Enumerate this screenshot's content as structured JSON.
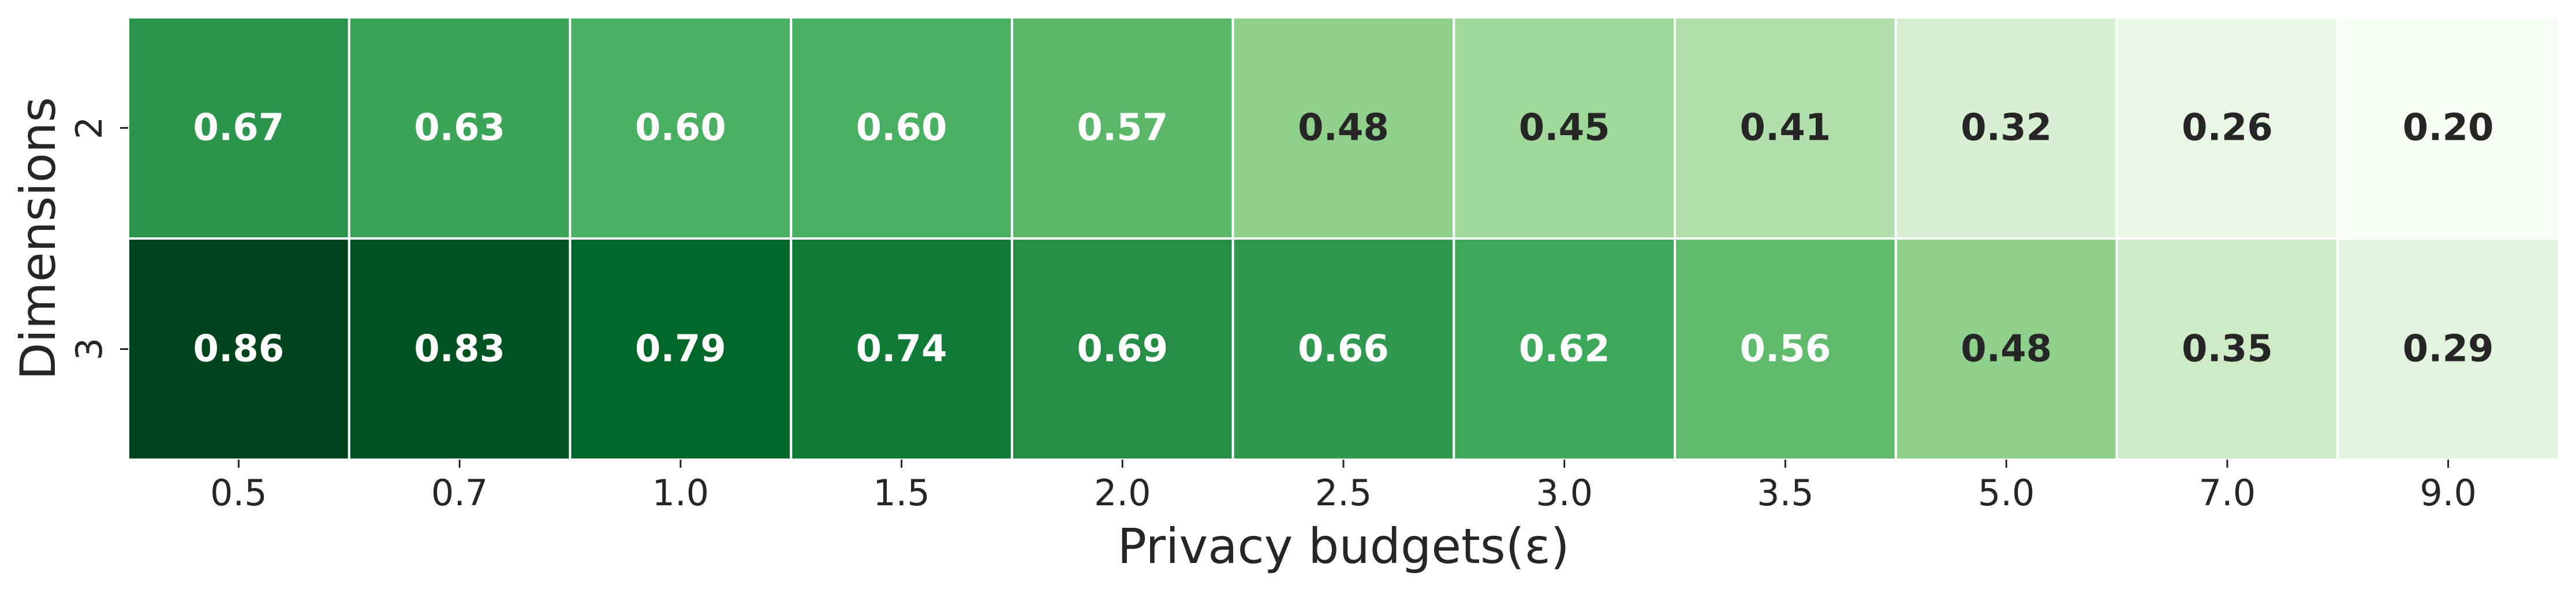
{
  "chart_data": {
    "type": "heatmap",
    "colormap": "Greens",
    "vmin": 0.2,
    "vmax": 0.86,
    "xlabel": "Privacy budgets(ε)",
    "ylabel": "Dimensions",
    "x_categories": [
      "0.5",
      "0.7",
      "1.0",
      "1.5",
      "2.0",
      "2.5",
      "3.0",
      "3.5",
      "5.0",
      "7.0",
      "9.0"
    ],
    "y_categories": [
      "2",
      "3"
    ],
    "values": [
      [
        0.67,
        0.63,
        0.6,
        0.6,
        0.57,
        0.48,
        0.45,
        0.41,
        0.32,
        0.26,
        0.2
      ],
      [
        0.86,
        0.83,
        0.79,
        0.74,
        0.69,
        0.66,
        0.62,
        0.56,
        0.48,
        0.35,
        0.29
      ]
    ],
    "value_labels": [
      [
        "0.67",
        "0.63",
        "0.60",
        "0.60",
        "0.57",
        "0.48",
        "0.45",
        "0.41",
        "0.32",
        "0.26",
        "0.20"
      ],
      [
        "0.86",
        "0.83",
        "0.79",
        "0.74",
        "0.69",
        "0.66",
        "0.62",
        "0.56",
        "0.48",
        "0.35",
        "0.29"
      ]
    ],
    "annotations": true,
    "grid": false,
    "legend": "none"
  }
}
